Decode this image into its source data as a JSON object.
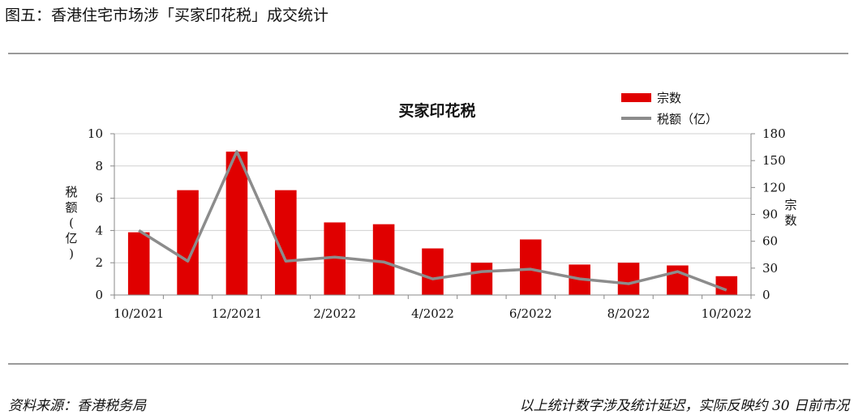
{
  "figure_title": "图五：香港住宅市场涉「买家印花税」成交统计",
  "footer": {
    "source": "资料来源：香港税务局",
    "note": "以上统计数字涉及统计延迟，实际反映约 30 日前市况"
  },
  "colors": {
    "bars": "#e00000",
    "line": "#8c8c8c",
    "rule": "#9a9a9a"
  },
  "chart_data": {
    "type": "bar",
    "title": "买家印花税",
    "categories": [
      "10/2021",
      "11/2021",
      "12/2021",
      "1/2022",
      "2/2022",
      "3/2022",
      "4/2022",
      "5/2022",
      "6/2022",
      "7/2022",
      "8/2022",
      "9/2022",
      "10/2022"
    ],
    "x_tick_labels": [
      "10/2021",
      "12/2021",
      "2/2022",
      "4/2022",
      "6/2022",
      "8/2022",
      "10/2022"
    ],
    "ylabel_left": "税额(亿)",
    "ylabel_right": "宗数",
    "ylim_left": [
      0,
      10
    ],
    "ylim_right": [
      0,
      180
    ],
    "yticks_left": [
      "0",
      "2",
      "4",
      "6",
      "8",
      "10"
    ],
    "yticks_right": [
      "0",
      "30",
      "60",
      "90",
      "120",
      "150",
      "180"
    ],
    "legend_position": "top-right",
    "grid": "horizontal",
    "series": [
      {
        "name": "宗数",
        "type": "bar",
        "axis": "right",
        "values": [
          70,
          117,
          160,
          117,
          81,
          79,
          52,
          36,
          62,
          34,
          36,
          33,
          21
        ]
      },
      {
        "name": "税额（亿）",
        "type": "line",
        "axis": "left",
        "values": [
          4.0,
          2.1,
          8.9,
          2.1,
          2.35,
          2.05,
          1.0,
          1.45,
          1.6,
          1.0,
          0.7,
          1.45,
          0.3
        ]
      }
    ]
  }
}
